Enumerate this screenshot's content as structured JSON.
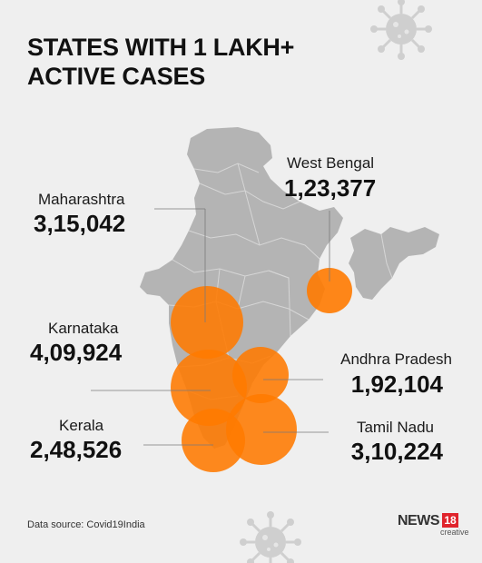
{
  "title_line1": "STATES WITH 1 LAKH+",
  "title_line2": "ACTIVE CASES",
  "states": [
    {
      "name": "West Bengal",
      "cases": "1,23,377"
    },
    {
      "name": "Maharashtra",
      "cases": "3,15,042"
    },
    {
      "name": "Karnataka",
      "cases": "4,09,924"
    },
    {
      "name": "Andhra Pradesh",
      "cases": "1,92,104"
    },
    {
      "name": "Kerala",
      "cases": "2,48,526"
    },
    {
      "name": "Tamil Nadu",
      "cases": "3,10,224"
    }
  ],
  "source": "Data source: Covid19India",
  "logo": {
    "text": "NEWS",
    "number": "18",
    "sub": "creative"
  },
  "colors": {
    "background": "#efefef",
    "map": "#b4b4b4",
    "bubble": "#ff7a00",
    "text": "#111111"
  },
  "icons": [
    "virus-icon",
    "virus-icon"
  ]
}
